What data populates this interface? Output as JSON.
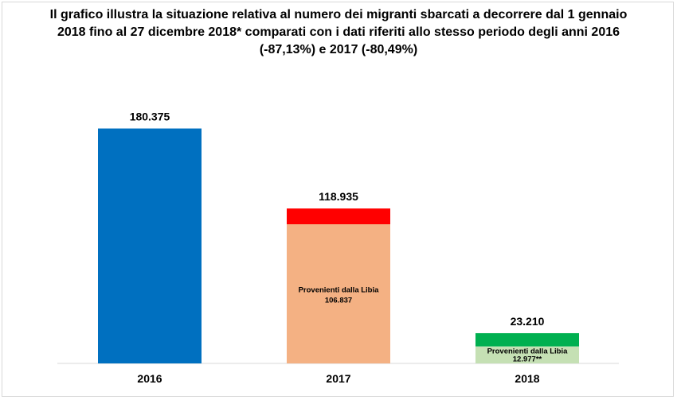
{
  "chart_data": {
    "type": "bar",
    "title": "Il grafico illustra la situazione relativa al numero dei migranti sbarcati a decorrere dal 1 gennaio 2018 fino al 27 dicembre 2018* comparati con i dati riferiti allo stesso periodo degli anni 2016 (-87,13%) e 2017 (-80,49%)",
    "categories": [
      "2016",
      "2017",
      "2018"
    ],
    "values": [
      180375,
      118935,
      23210
    ],
    "value_labels": [
      "180.375",
      "118.935",
      "23.210"
    ],
    "libia": {
      "label": "Provenienti dalla Libia",
      "values": [
        null,
        106837,
        12977
      ],
      "value_labels": [
        "",
        "106.837",
        "12.977**"
      ]
    },
    "ylim": [
      0,
      200000
    ],
    "colors": {
      "2016_total": "#0070c0",
      "2017_other": "#ff0000",
      "2017_libia": "#f4b183",
      "2018_other": "#00b050",
      "2018_libia": "#c5e0b4"
    },
    "grid": false
  }
}
